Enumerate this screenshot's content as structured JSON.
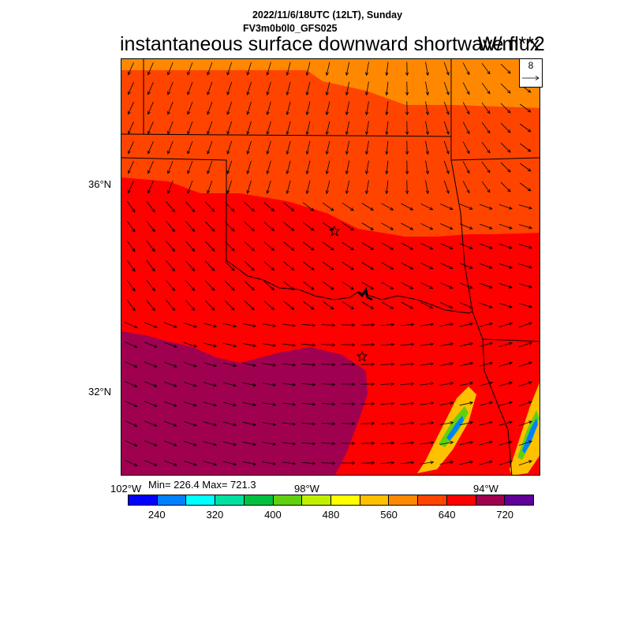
{
  "header": {
    "datetime": "2022/11/6/18UTC (12LT), Sunday",
    "model": "FV3m0b0l0_GFS025",
    "title": "instantaneous surface downward shortwave flux",
    "units": "W/m**2"
  },
  "reference_vector": {
    "label": "8"
  },
  "axes": {
    "lat_labels": [
      "36°N",
      "32°N"
    ],
    "lon_labels": [
      "102°W",
      "98°W",
      "94°W"
    ]
  },
  "stats": {
    "text": "Min= 226.4 Max= 721.3"
  },
  "colorbar": {
    "colors": [
      "#0000ff",
      "#0080ff",
      "#00ffff",
      "#00e0a0",
      "#00c040",
      "#60d010",
      "#c0f000",
      "#ffff00",
      "#ffc000",
      "#ff8800",
      "#ff4400",
      "#ff0000",
      "#a00050",
      "#600098"
    ],
    "labels": [
      "240",
      "320",
      "400",
      "480",
      "560",
      "640",
      "720"
    ]
  },
  "map_regions": {
    "north_band": "#ff8800",
    "upper": "#ff4400",
    "middle": "#ff0000",
    "southwest": "#a00050",
    "patch_outer": "#ffc000",
    "patch_mid": "#60d010",
    "patch_core": "#0080ff"
  }
}
